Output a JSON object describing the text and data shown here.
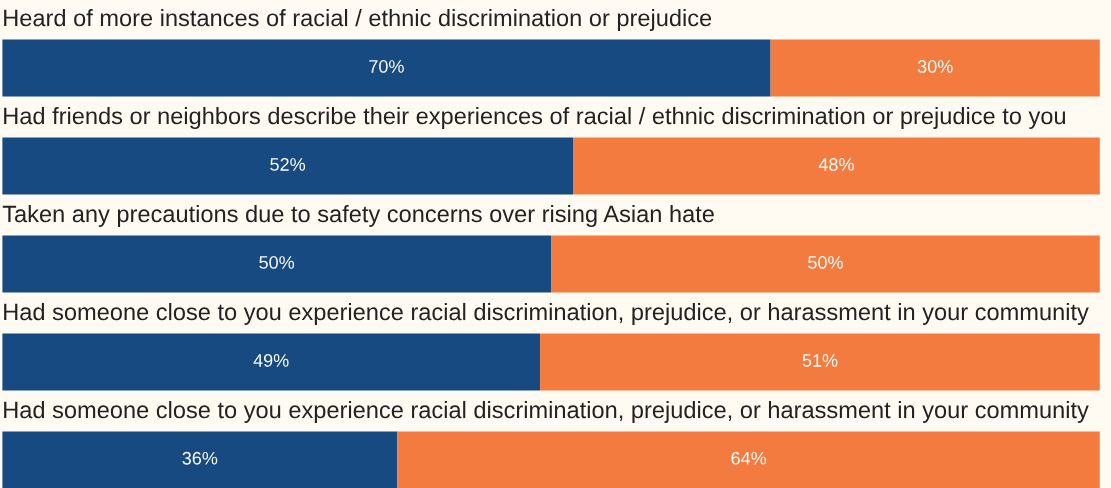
{
  "chart_data": {
    "type": "bar",
    "orientation": "horizontal",
    "stacked": true,
    "categories": [
      "Heard of more instances of racial / ethnic discrimination or prejudice",
      "Had friends or neighbors describe their experiences of racial / ethnic discrimination or prejudice to you",
      "Taken any precautions due to safety concerns over rising Asian hate",
      "Had someone close to you experience racial discrimination, prejudice, or harassment in your community",
      "Had someone close to you experience racial discrimination, prejudice, or harassment in your community"
    ],
    "series": [
      {
        "color": "#174a80",
        "values": [
          70,
          52,
          50,
          49,
          36
        ],
        "value_labels": [
          "70%",
          "52%",
          "50%",
          "49%",
          "36%"
        ]
      },
      {
        "color": "#f47b3f",
        "values": [
          30,
          48,
          50,
          51,
          64
        ],
        "value_labels": [
          "30%",
          "48%",
          "50%",
          "51%",
          "64%"
        ]
      }
    ]
  }
}
